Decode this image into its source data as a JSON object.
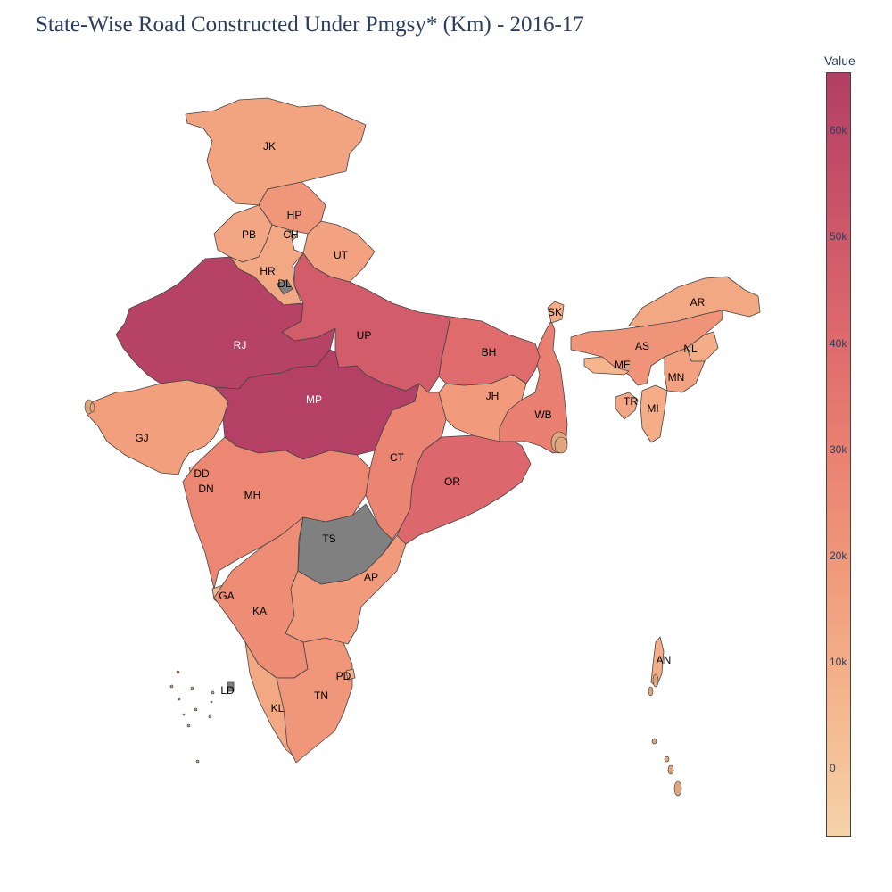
{
  "title": "State-Wise Road Constructed Under Pmgsy* (Km) - 2016-17",
  "colorbar": {
    "title": "Value",
    "min": -6500,
    "max": 65500,
    "ticks": [
      {
        "value": 0,
        "label": "0"
      },
      {
        "value": 10000,
        "label": "10k"
      },
      {
        "value": 20000,
        "label": "20k"
      },
      {
        "value": 30000,
        "label": "30k"
      },
      {
        "value": 40000,
        "label": "40k"
      },
      {
        "value": 50000,
        "label": "50k"
      },
      {
        "value": 60000,
        "label": "60k"
      }
    ],
    "colors": [
      "#f6d2a9",
      "#f5b78e",
      "#f19c7c",
      "#ea8171",
      "#dd686c",
      "#ca5268",
      "#b13f64"
    ]
  },
  "no_data_color": "#808080",
  "states": [
    {
      "code": "JK",
      "value": 14000
    },
    {
      "code": "HP",
      "value": 20000
    },
    {
      "code": "PB",
      "value": 13000
    },
    {
      "code": "CH",
      "value": 8000
    },
    {
      "code": "UT",
      "value": 15000
    },
    {
      "code": "HR",
      "value": 12000
    },
    {
      "code": "DL",
      "value": null
    },
    {
      "code": "RJ",
      "value": 63000
    },
    {
      "code": "UP",
      "value": 48000
    },
    {
      "code": "MP",
      "value": 64000
    },
    {
      "code": "GJ",
      "value": 16000
    },
    {
      "code": "DD",
      "value": 8000
    },
    {
      "code": "DN",
      "value": 8000
    },
    {
      "code": "MH",
      "value": 27000
    },
    {
      "code": "GA",
      "value": 5000
    },
    {
      "code": "KA",
      "value": 24000
    },
    {
      "code": "KL",
      "value": 12000
    },
    {
      "code": "LD",
      "value": null
    },
    {
      "code": "TN",
      "value": 20000
    },
    {
      "code": "PD",
      "value": 8000
    },
    {
      "code": "AP",
      "value": 18000
    },
    {
      "code": "TS",
      "value": null
    },
    {
      "code": "CT",
      "value": 28000
    },
    {
      "code": "OR",
      "value": 42000
    },
    {
      "code": "JH",
      "value": 18000
    },
    {
      "code": "WB",
      "value": 30000
    },
    {
      "code": "BH",
      "value": 40000
    },
    {
      "code": "SK",
      "value": 10000
    },
    {
      "code": "AR",
      "value": 12000
    },
    {
      "code": "AS",
      "value": 21000
    },
    {
      "code": "NL",
      "value": 10000
    },
    {
      "code": "ME",
      "value": 6000
    },
    {
      "code": "MN",
      "value": 15000
    },
    {
      "code": "TR",
      "value": 13000
    },
    {
      "code": "MI",
      "value": 10000
    },
    {
      "code": "AN",
      "value": 9000
    }
  ]
}
